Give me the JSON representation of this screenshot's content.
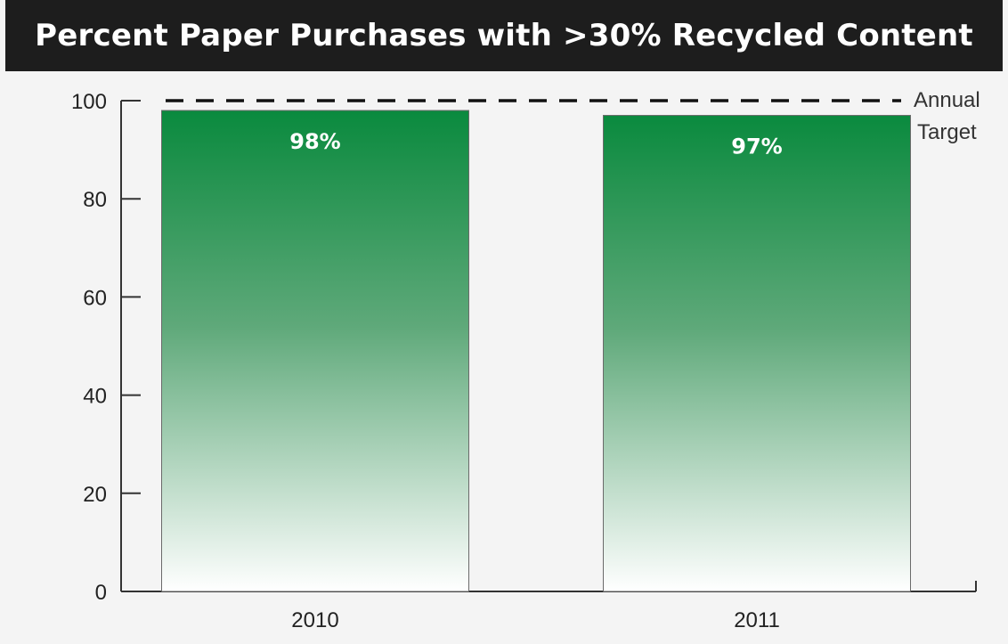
{
  "chart_data": {
    "type": "bar",
    "title": "Percent Paper Purchases with >30% Recycled Content",
    "categories": [
      "2010",
      "2011"
    ],
    "values": [
      98,
      97
    ],
    "data_labels": [
      "98%",
      "97%"
    ],
    "xlabel": "",
    "ylabel": "",
    "ylim": [
      0,
      100
    ],
    "yticks": [
      "0",
      "20",
      "40",
      "60",
      "80",
      "100"
    ],
    "target": {
      "value": 100,
      "label_line1": "Annual",
      "label_line2": "Target"
    },
    "grid": false,
    "legend": "none",
    "colors": {
      "bar_top": "#0a8a3e",
      "bar_bottom": "#ffffff",
      "target_line": "#111111",
      "title_bg": "#1d1d1d"
    }
  }
}
